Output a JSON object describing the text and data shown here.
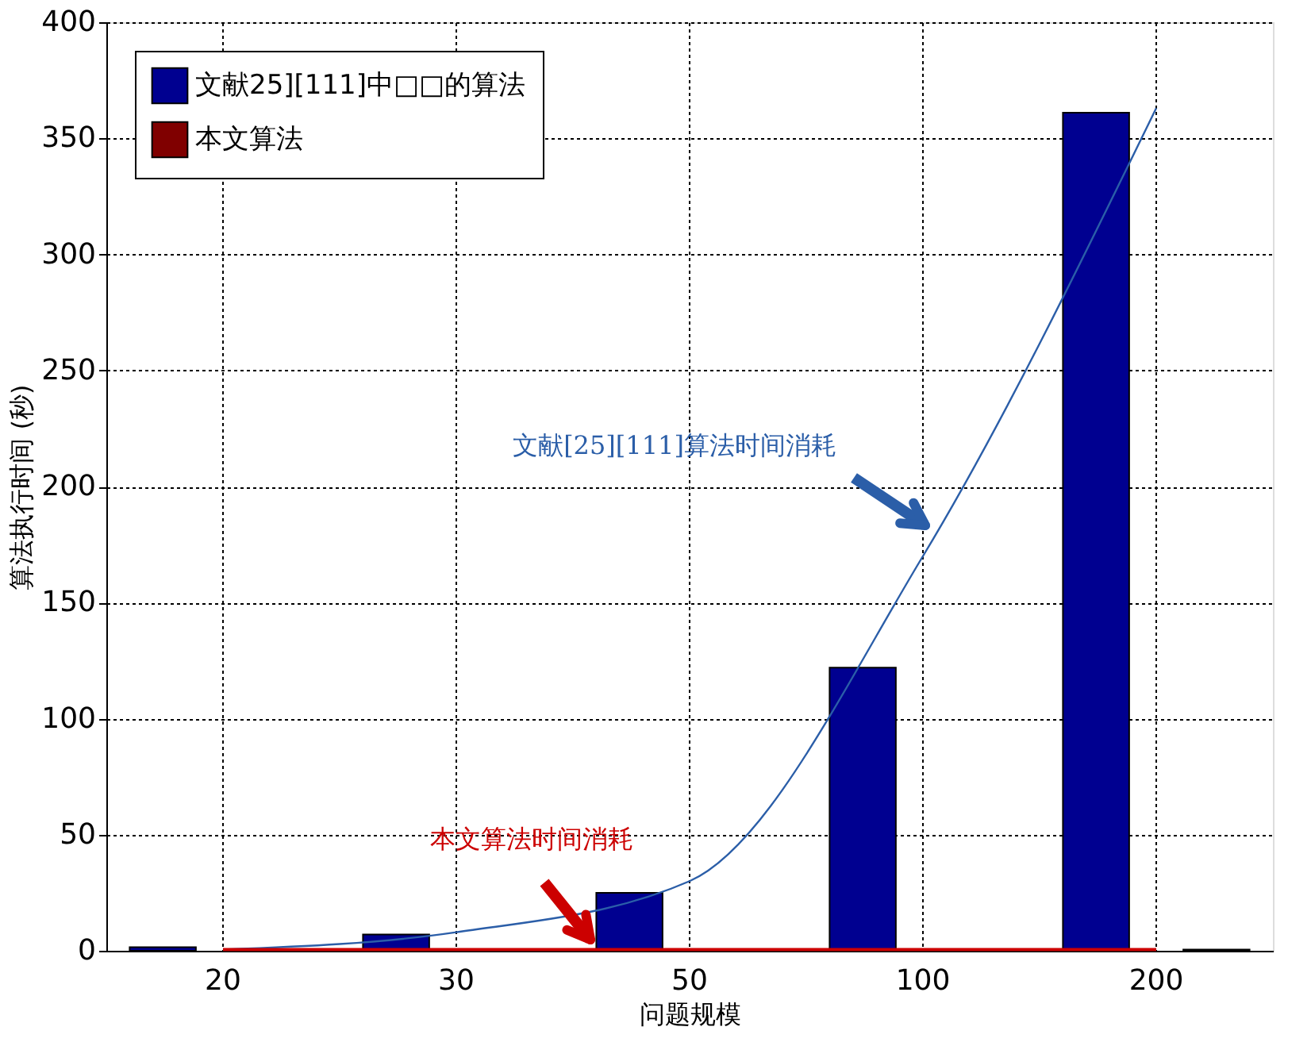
{
  "chart_data": {
    "type": "bar",
    "xlabel": "问题规模",
    "ylabel": "算法执行时间 (秒)",
    "categories": [
      "20",
      "30",
      "50",
      "100",
      "200"
    ],
    "series": [
      {
        "name": "文献25][111]中□□的算法",
        "color": "#000090",
        "values": [
          1.5,
          7,
          25,
          122,
          361
        ]
      },
      {
        "name": "本文算法",
        "color": "#800000",
        "values": [
          0.5,
          0.5,
          0.5,
          0.5,
          0.5
        ]
      },
      {
        "type": "line",
        "color": "#2b5ea8",
        "x": [
          "20",
          "30",
          "50",
          "100",
          "200"
        ],
        "values": [
          0.5,
          8,
          30,
          170,
          363
        ]
      },
      {
        "type": "line",
        "color": "#cc0000",
        "x": [
          "20",
          "30",
          "50",
          "100",
          "200"
        ],
        "values": [
          0.5,
          0.5,
          0.5,
          0.5,
          0.5
        ]
      }
    ],
    "annotations": [
      "文献[25][111]算法时间消耗",
      "本文算法时间消耗"
    ],
    "ylim": [
      0,
      400
    ],
    "yticks": [
      0,
      50,
      100,
      150,
      200,
      250,
      300,
      350,
      400
    ],
    "grid": true,
    "legend": "top left"
  }
}
